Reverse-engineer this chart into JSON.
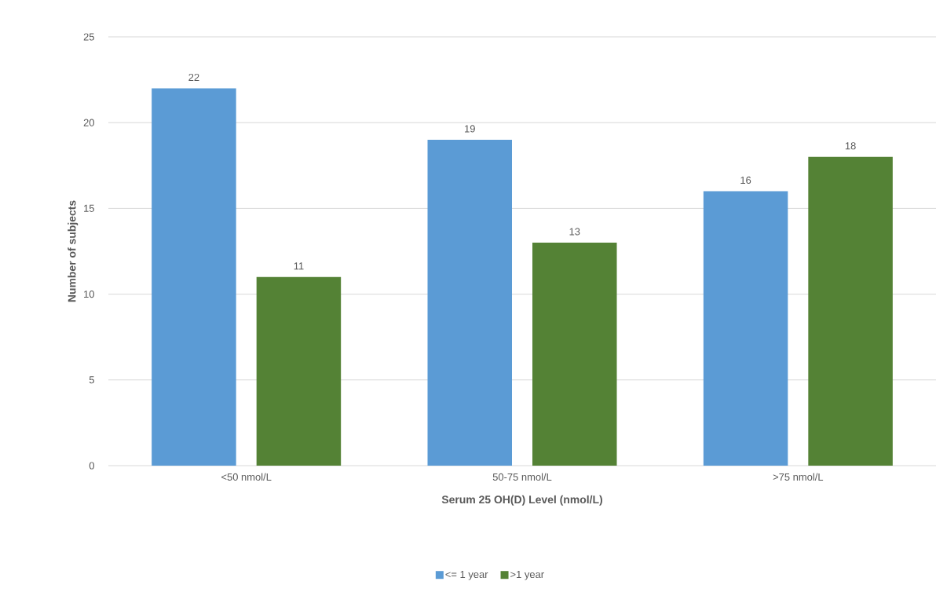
{
  "chart_data": {
    "type": "bar",
    "xlabel": "Serum 25 OH(D) Level  (nmol/L)",
    "ylabel": "Number of subjects",
    "categories": [
      "<50 nmol/L",
      "50-75 nmol/L",
      ">75 nmol/L"
    ],
    "series": [
      {
        "name": "<= 1 year",
        "color": "#5b9bd5",
        "values": [
          22,
          19,
          16
        ]
      },
      {
        "name": ">1 year",
        "color": "#548235",
        "values": [
          11,
          13,
          18
        ]
      }
    ],
    "ylim": [
      0,
      25
    ],
    "yticks": [
      0,
      5,
      10,
      15,
      20,
      25
    ],
    "grid": "y",
    "legend": "bottom",
    "data_labels": true
  }
}
